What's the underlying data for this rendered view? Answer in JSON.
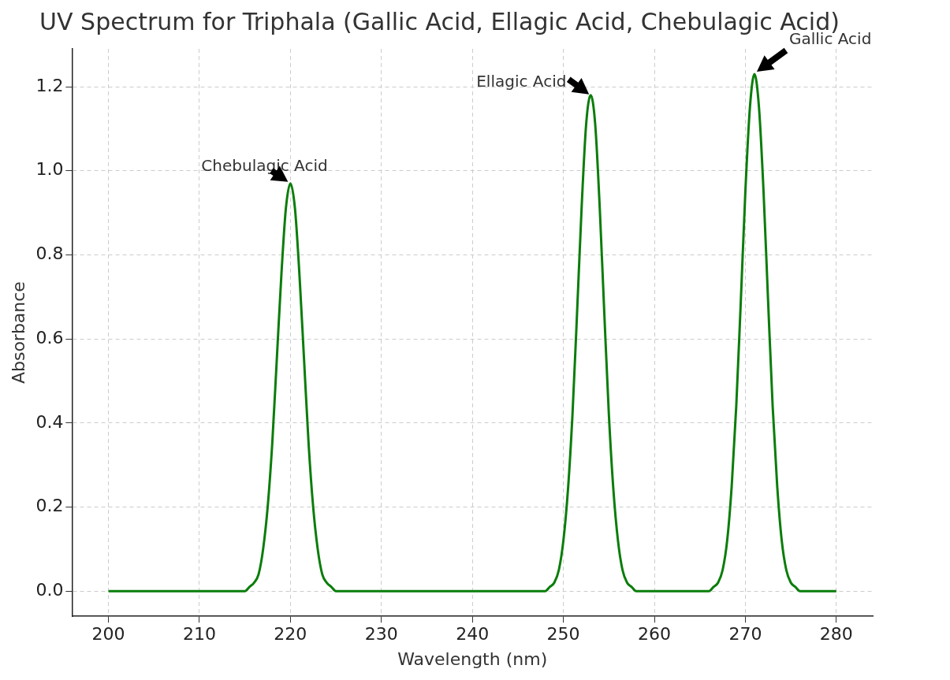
{
  "chart_data": {
    "type": "line",
    "title": "UV Spectrum for Triphala (Gallic Acid, Ellagic Acid, Chebulagic Acid)",
    "xlabel": "Wavelength (nm)",
    "ylabel": "Absorbance",
    "series": [
      {
        "color": "#0a7d0a",
        "x": [
          200,
          210,
          215,
          215.5,
          216,
          216.5,
          217,
          217.5,
          218,
          218.5,
          219,
          219.5,
          220,
          220.5,
          221,
          221.5,
          222,
          222.5,
          223,
          223.5,
          224,
          224.5,
          225,
          235,
          245,
          248,
          248.5,
          249,
          249.5,
          250,
          250.5,
          251,
          251.5,
          252,
          252.5,
          253,
          253.5,
          254,
          254.5,
          255,
          255.5,
          256,
          256.5,
          257,
          257.5,
          258,
          262,
          266,
          266.5,
          267,
          267.5,
          268,
          268.5,
          269,
          269.5,
          270,
          270.5,
          271,
          271.5,
          272,
          272.5,
          273,
          273.5,
          274,
          274.5,
          275,
          275.5,
          276,
          280
        ],
        "values": [
          0,
          0,
          0,
          0.01,
          0.02,
          0.04,
          0.1,
          0.2,
          0.35,
          0.55,
          0.75,
          0.91,
          0.97,
          0.91,
          0.75,
          0.55,
          0.35,
          0.2,
          0.1,
          0.04,
          0.02,
          0.01,
          0,
          0,
          0,
          0,
          0.01,
          0.02,
          0.05,
          0.12,
          0.24,
          0.42,
          0.66,
          0.91,
          1.11,
          1.18,
          1.11,
          0.91,
          0.66,
          0.42,
          0.24,
          0.12,
          0.05,
          0.02,
          0.01,
          0,
          0,
          0,
          0.01,
          0.02,
          0.05,
          0.12,
          0.25,
          0.44,
          0.69,
          0.95,
          1.15,
          1.23,
          1.15,
          0.95,
          0.69,
          0.44,
          0.25,
          0.12,
          0.05,
          0.02,
          0.01,
          0,
          0
        ]
      }
    ],
    "xlim": [
      196,
      284
    ],
    "ylim": [
      -0.06,
      1.29
    ],
    "xticks": [
      200,
      210,
      220,
      230,
      240,
      250,
      260,
      270,
      280
    ],
    "yticks": [
      {
        "value": 0,
        "label": "0.0"
      },
      {
        "value": 0.2,
        "label": "0.2"
      },
      {
        "value": 0.4,
        "label": "0.4"
      },
      {
        "value": 0.6,
        "label": "0.6"
      },
      {
        "value": 0.8,
        "label": "0.8"
      },
      {
        "value": 1,
        "label": "1.0"
      },
      {
        "value": 1.2,
        "label": "1.2"
      }
    ],
    "grid": true,
    "legend": false,
    "marker": "none",
    "line_style": "solid",
    "annotations": [
      {
        "text": "Chebulagic Acid",
        "x": 220,
        "y": 0.97
      },
      {
        "text": "Ellagic Acid",
        "x": 253,
        "y": 1.18
      },
      {
        "text": "Gallic Acid",
        "x": 271,
        "y": 1.23
      }
    ]
  }
}
